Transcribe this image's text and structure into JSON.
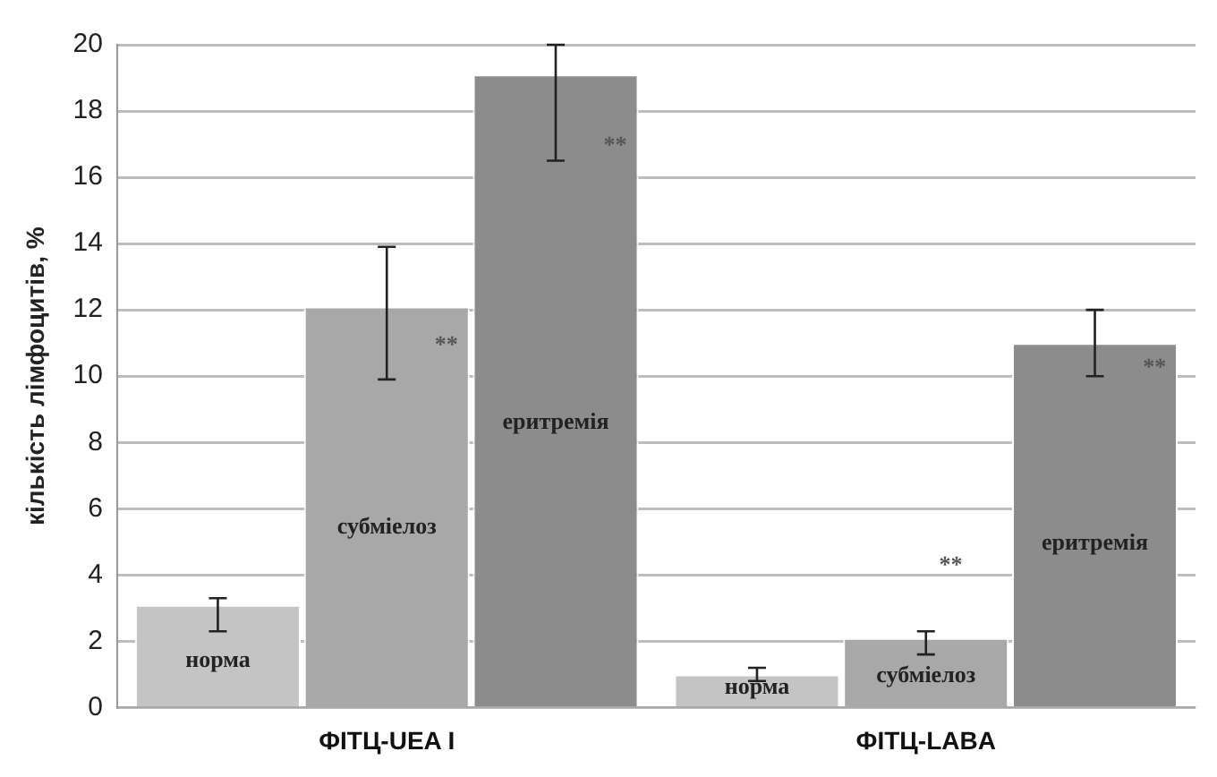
{
  "chart_data": {
    "type": "bar",
    "ylabel": "кількість лімфоцитів, %",
    "categories": [
      "ФІТЦ-UEA I",
      "ФІТЦ-LABA"
    ],
    "series": [
      {
        "name": "норма",
        "color": "#c4c4c4",
        "values": [
          3.1,
          1.0
        ],
        "errors": [
          [
            2.3,
            3.3
          ],
          [
            0.8,
            1.2
          ]
        ]
      },
      {
        "name": "субміелоз",
        "color": "#a8a8a8",
        "values": [
          12.1,
          2.1
        ],
        "errors": [
          [
            9.9,
            13.9
          ],
          [
            1.6,
            2.3
          ]
        ]
      },
      {
        "name": "еритремія",
        "color": "#8c8c8c",
        "values": [
          19.1,
          11.0
        ],
        "errors": [
          [
            16.5,
            20
          ],
          [
            10.0,
            12.0
          ]
        ]
      }
    ],
    "ylim": [
      0,
      20
    ],
    "yticks": [
      0,
      2,
      4,
      6,
      8,
      10,
      12,
      14,
      16,
      18,
      20
    ],
    "grid": "y",
    "legend": false,
    "annotations": [
      "**",
      "**",
      "**",
      "**"
    ]
  }
}
